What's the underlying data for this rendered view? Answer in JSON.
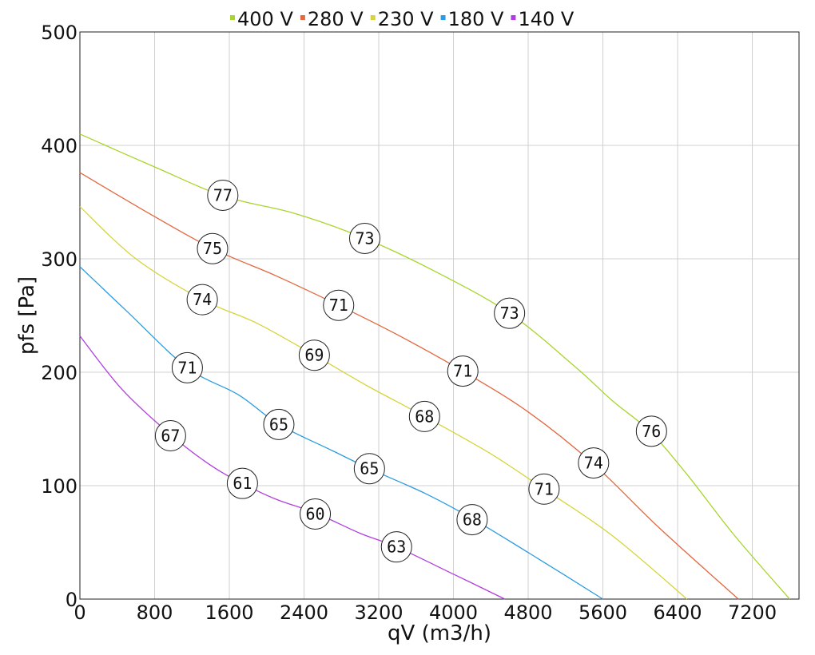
{
  "chart_data": {
    "type": "line",
    "title": "",
    "xlabel": "qV (m3/h)",
    "ylabel": "pfs [Pa]",
    "xlim": [
      0,
      7700
    ],
    "ylim": [
      0,
      500
    ],
    "x_ticks": [
      0,
      800,
      1600,
      2400,
      3200,
      4000,
      4800,
      5600,
      6400,
      7200
    ],
    "y_ticks": [
      0,
      100,
      200,
      300,
      400,
      500
    ],
    "grid": true,
    "legend_position": "top",
    "series": [
      {
        "name": "400 V",
        "color": "#a8d52b",
        "points": [
          [
            0,
            410
          ],
          [
            800,
            381
          ],
          [
            1550,
            355
          ],
          [
            2300,
            340
          ],
          [
            3050,
            318
          ],
          [
            3800,
            289
          ],
          [
            4600,
            252
          ],
          [
            5300,
            205
          ],
          [
            5700,
            175
          ],
          [
            6100,
            148
          ],
          [
            6500,
            110
          ],
          [
            7000,
            57
          ],
          [
            7600,
            0
          ]
        ],
        "markers": [
          {
            "x": 1530,
            "y": 356,
            "label": "77"
          },
          {
            "x": 3050,
            "y": 318,
            "label": "73"
          },
          {
            "x": 4600,
            "y": 252,
            "label": "73"
          },
          {
            "x": 6120,
            "y": 148,
            "label": "76"
          }
        ]
      },
      {
        "name": "280 V",
        "color": "#e2683f",
        "points": [
          [
            0,
            376
          ],
          [
            700,
            342
          ],
          [
            1420,
            309
          ],
          [
            2100,
            285
          ],
          [
            2770,
            259
          ],
          [
            3400,
            233
          ],
          [
            4100,
            201
          ],
          [
            4800,
            165
          ],
          [
            5500,
            119
          ],
          [
            6200,
            63
          ],
          [
            7050,
            0
          ]
        ],
        "markers": [
          {
            "x": 1420,
            "y": 309,
            "label": "75"
          },
          {
            "x": 2770,
            "y": 259,
            "label": "71"
          },
          {
            "x": 4100,
            "y": 201,
            "label": "71"
          },
          {
            "x": 5500,
            "y": 120,
            "label": "74"
          }
        ]
      },
      {
        "name": "230 V",
        "color": "#d6d43a",
        "points": [
          [
            0,
            346
          ],
          [
            600,
            300
          ],
          [
            1310,
            264
          ],
          [
            1900,
            243
          ],
          [
            2510,
            215
          ],
          [
            3100,
            187
          ],
          [
            3690,
            161
          ],
          [
            4400,
            128
          ],
          [
            4970,
            97
          ],
          [
            5700,
            56
          ],
          [
            6500,
            0
          ]
        ],
        "markers": [
          {
            "x": 1310,
            "y": 264,
            "label": "74"
          },
          {
            "x": 2510,
            "y": 215,
            "label": "69"
          },
          {
            "x": 3690,
            "y": 161,
            "label": "68"
          },
          {
            "x": 4970,
            "y": 97,
            "label": "71"
          }
        ]
      },
      {
        "name": "180 V",
        "color": "#2b9ce0",
        "points": [
          [
            0,
            293
          ],
          [
            500,
            254
          ],
          [
            1150,
            204
          ],
          [
            1700,
            180
          ],
          [
            2130,
            154
          ],
          [
            2700,
            131
          ],
          [
            3100,
            115
          ],
          [
            3700,
            93
          ],
          [
            4200,
            71
          ],
          [
            4900,
            36
          ],
          [
            5600,
            0
          ]
        ],
        "markers": [
          {
            "x": 1150,
            "y": 204,
            "label": "71"
          },
          {
            "x": 2130,
            "y": 154,
            "label": "65"
          },
          {
            "x": 3100,
            "y": 115,
            "label": "65"
          },
          {
            "x": 4200,
            "y": 70,
            "label": "68"
          }
        ]
      },
      {
        "name": "140 V",
        "color": "#b13ee0",
        "points": [
          [
            0,
            232
          ],
          [
            450,
            185
          ],
          [
            970,
            145
          ],
          [
            1400,
            118
          ],
          [
            1740,
            102
          ],
          [
            2100,
            88
          ],
          [
            2520,
            76
          ],
          [
            3000,
            58
          ],
          [
            3390,
            46
          ],
          [
            4000,
            22
          ],
          [
            4550,
            0
          ]
        ],
        "markers": [
          {
            "x": 970,
            "y": 144,
            "label": "67"
          },
          {
            "x": 1740,
            "y": 102,
            "label": "61"
          },
          {
            "x": 2520,
            "y": 75,
            "label": "60"
          },
          {
            "x": 3390,
            "y": 46,
            "label": "63"
          }
        ]
      }
    ]
  }
}
